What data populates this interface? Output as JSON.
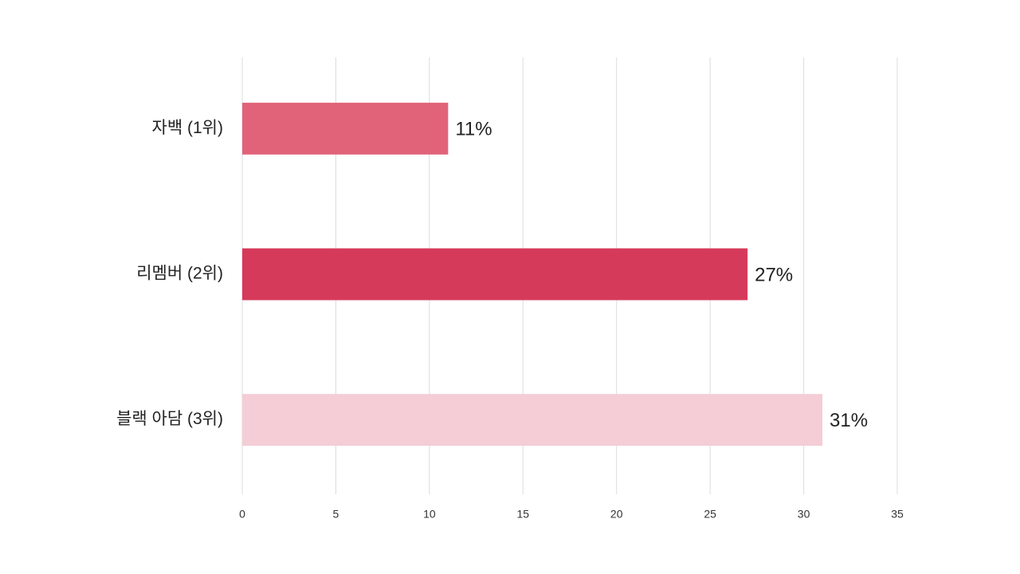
{
  "chart_data": {
    "type": "bar",
    "orientation": "horizontal",
    "categories": [
      "자백 (1위)",
      "리멤버 (2위)",
      "블랙 아담 (3위)"
    ],
    "values": [
      11,
      27,
      31
    ],
    "value_labels": [
      "11%",
      "27%",
      "31%"
    ],
    "colors": [
      "#e0637a",
      "#d63a5a",
      "#f4cdd6"
    ],
    "xlim": [
      0,
      35
    ],
    "xticks": [
      0,
      5,
      10,
      15,
      20,
      25,
      30,
      35
    ],
    "grid": true
  }
}
